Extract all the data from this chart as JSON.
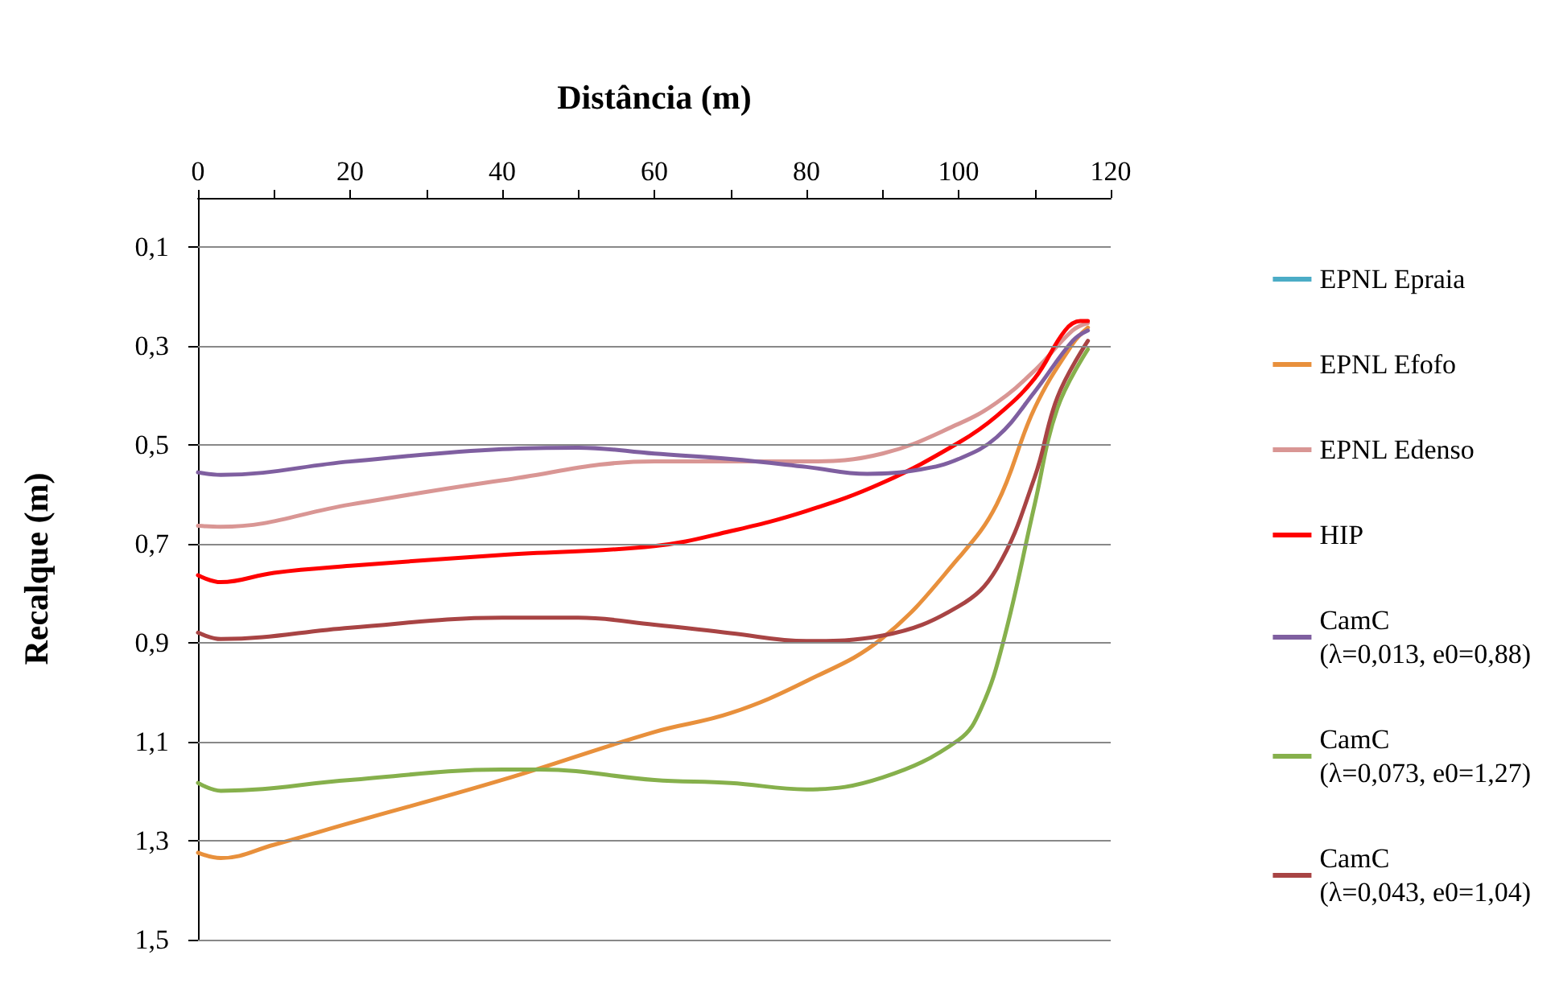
{
  "chart_data": {
    "type": "line",
    "xlabel": "Distância (m)",
    "ylabel": "Recalque (m)",
    "xlim": [
      0,
      120
    ],
    "xticks": [
      0,
      {
        "value": 10,
        "label": null
      },
      20,
      {
        "value": 30,
        "label": null
      },
      40,
      {
        "value": 50,
        "label": null
      },
      60,
      {
        "value": 70,
        "label": null
      },
      80,
      {
        "value": 90,
        "label": null
      },
      100,
      {
        "value": 110,
        "label": null
      },
      120
    ],
    "ylim": [
      1.5,
      0
    ],
    "yticks": [
      {
        "value": 0.1,
        "label": "0,1"
      },
      {
        "value": 0.3,
        "label": "0,3"
      },
      {
        "value": 0.5,
        "label": "0,5"
      },
      {
        "value": 0.7,
        "label": "0,7"
      },
      {
        "value": 0.9,
        "label": "0,9"
      },
      {
        "value": 1.1,
        "label": "1,1"
      },
      {
        "value": 1.3,
        "label": "1,3"
      },
      {
        "value": 1.5,
        "label": "1,5"
      }
    ],
    "grid": "y",
    "legend": "right",
    "marker": "none",
    "line_style": "solid",
    "series": [
      {
        "name": "EPNL Epraia",
        "color": "#4bacc6"
      },
      {
        "name": "EPNL Efofo",
        "color": "#e8903c",
        "x": [
          0,
          3,
          10,
          20,
          40,
          60,
          70,
          80,
          90,
          100,
          105,
          110,
          115,
          117
        ],
        "values": [
          1.324,
          1.335,
          1.308,
          1.264,
          1.177,
          1.08,
          1.042,
          0.977,
          0.89,
          0.728,
          0.62,
          0.425,
          0.295,
          0.262
        ]
      },
      {
        "name": "EPNL Edenso",
        "color": "#d99694",
        "x": [
          0,
          3,
          20,
          40,
          60,
          70,
          80,
          90,
          100,
          105,
          110,
          115,
          117
        ],
        "values": [
          0.663,
          0.665,
          0.62,
          0.571,
          0.533,
          0.533,
          0.533,
          0.517,
          0.457,
          0.414,
          0.349,
          0.268,
          0.253
        ]
      },
      {
        "name": "HIP",
        "color": "#ff0000",
        "x": [
          0,
          3,
          10,
          20,
          40,
          60,
          70,
          80,
          90,
          100,
          105,
          110,
          114,
          116,
          117
        ],
        "values": [
          0.763,
          0.777,
          0.758,
          0.744,
          0.722,
          0.704,
          0.674,
          0.633,
          0.576,
          0.495,
          0.441,
          0.365,
          0.268,
          0.249,
          0.249
        ]
      },
      {
        "name": "CamC\n(λ=0,013, e0=0,88)",
        "color": "#7f5fa0",
        "x": [
          0,
          3,
          20,
          40,
          50,
          60,
          70,
          80,
          88,
          95,
          100,
          105,
          110,
          115,
          117
        ],
        "values": [
          0.555,
          0.56,
          0.533,
          0.508,
          0.505,
          0.517,
          0.528,
          0.544,
          0.558,
          0.549,
          0.528,
          0.484,
          0.392,
          0.289,
          0.268
        ]
      },
      {
        "name": "CamC\n(λ=0,073, e0=1,27)",
        "color": "#86b04c",
        "x": [
          0,
          3,
          20,
          40,
          45,
          60,
          70,
          80,
          90,
          100,
          103,
          106,
          110,
          113,
          117
        ],
        "values": [
          1.183,
          1.199,
          1.177,
          1.156,
          1.156,
          1.177,
          1.183,
          1.196,
          1.172,
          1.096,
          1.031,
          0.89,
          0.62,
          0.425,
          0.306
        ]
      },
      {
        "name": "CamC\n(λ=0,043, e0=1,04)",
        "color": "#a84444",
        "x": [
          0,
          3,
          20,
          40,
          50,
          60,
          70,
          80,
          90,
          100,
          105,
          110,
          113,
          117
        ],
        "values": [
          0.879,
          0.892,
          0.869,
          0.849,
          0.849,
          0.863,
          0.88,
          0.896,
          0.885,
          0.826,
          0.75,
          0.565,
          0.403,
          0.289
        ]
      }
    ]
  }
}
